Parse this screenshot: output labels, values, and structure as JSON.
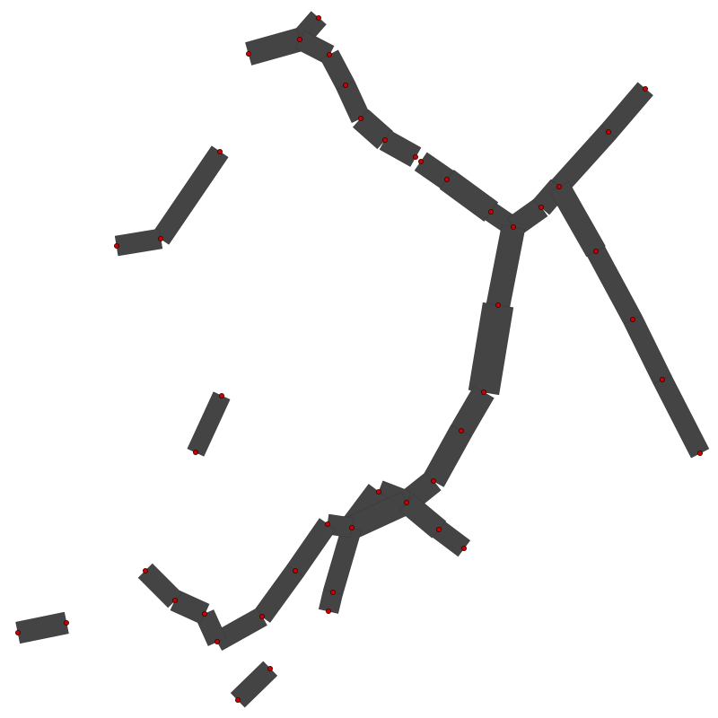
{
  "diagram": {
    "background": "#ffffff",
    "segment_color": "#444444",
    "node_color": "#cc0000"
  }
}
